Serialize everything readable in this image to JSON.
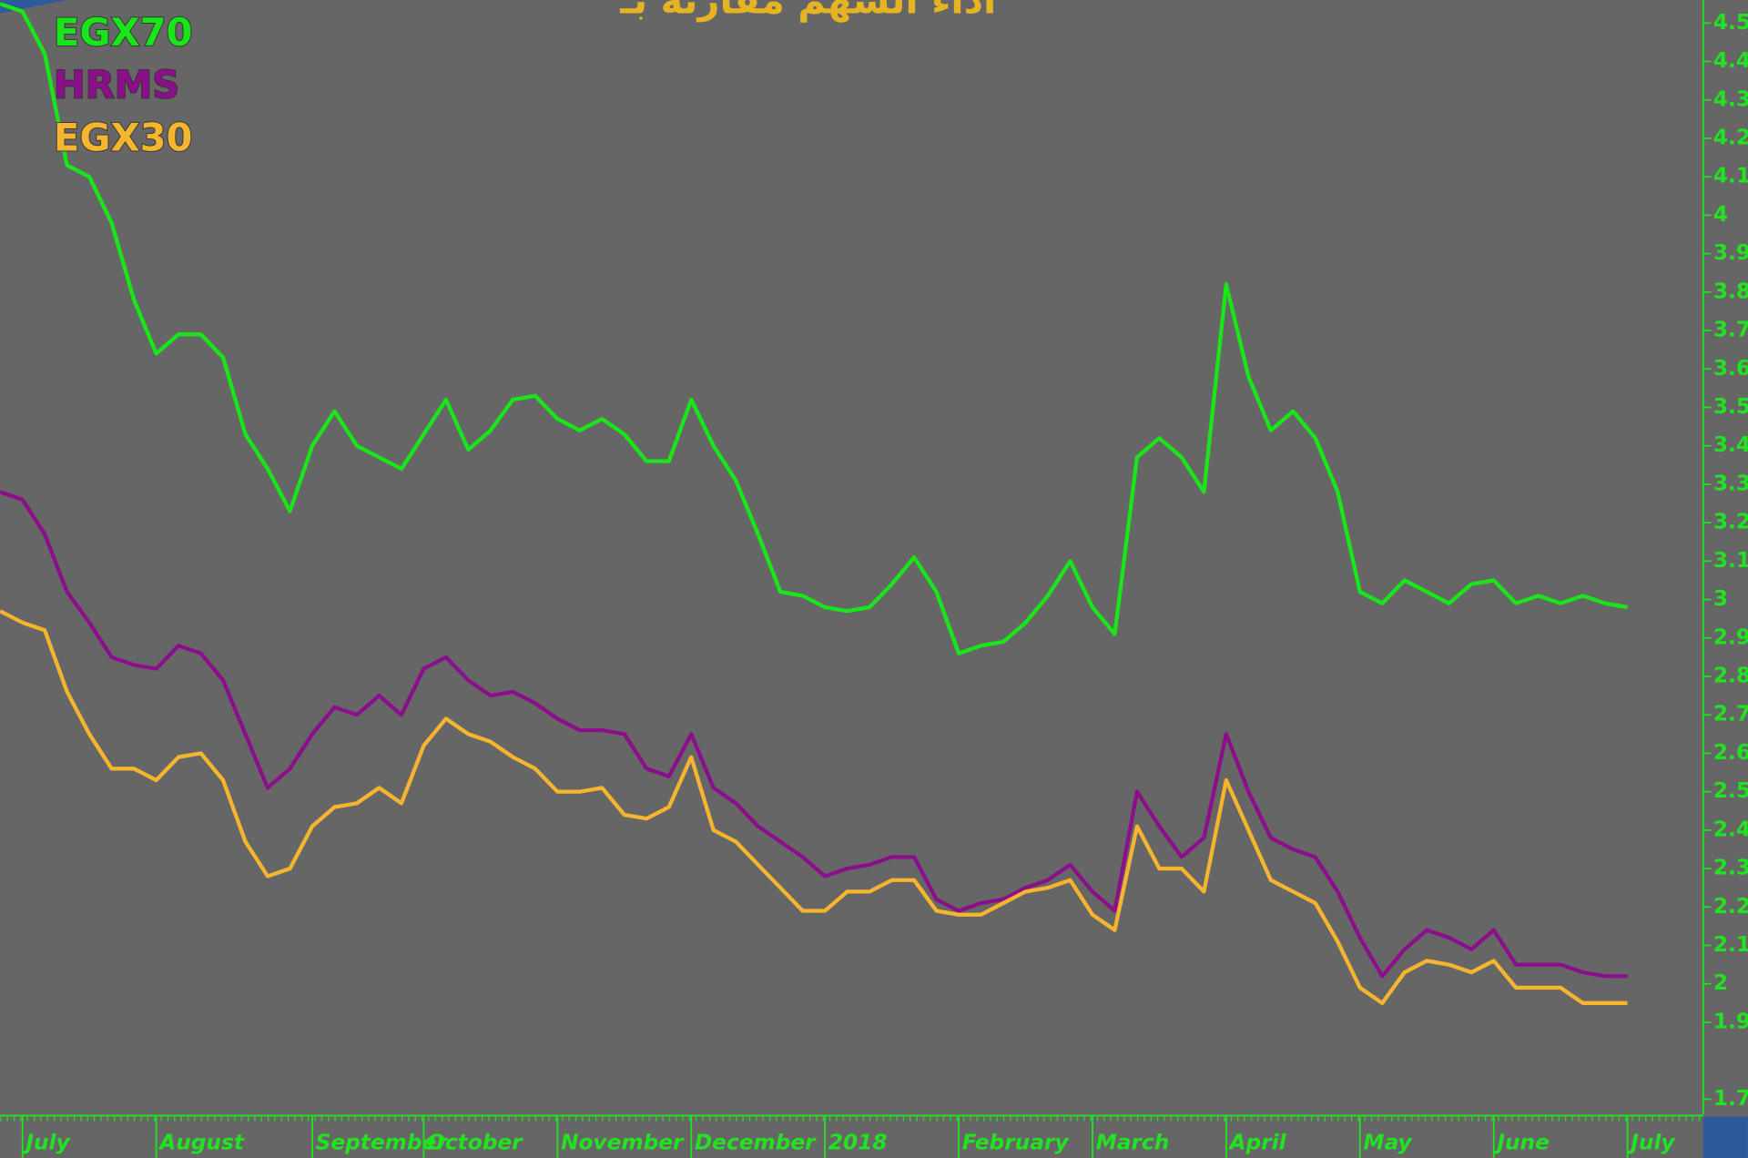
{
  "chart_data": {
    "type": "line",
    "title": "اداء السهم مقارنة بـ",
    "categories": [
      null,
      "July",
      null,
      null,
      null,
      null,
      null,
      "August",
      null,
      null,
      null,
      null,
      null,
      null,
      "September",
      null,
      null,
      null,
      null,
      "October",
      null,
      null,
      null,
      null,
      null,
      "November",
      null,
      null,
      null,
      null,
      null,
      "December",
      null,
      null,
      null,
      null,
      null,
      "2018",
      null,
      null,
      null,
      null,
      null,
      "February",
      null,
      null,
      null,
      null,
      null,
      "March",
      null,
      null,
      null,
      null,
      null,
      "April",
      null,
      null,
      null,
      null,
      null,
      "May",
      null,
      null,
      null,
      null,
      null,
      "June",
      null,
      null,
      null,
      null,
      null,
      "July"
    ],
    "series": [
      {
        "name": "EGX70",
        "color": "#19e619",
        "values": [
          4.55,
          4.53,
          4.42,
          4.13,
          4.1,
          3.98,
          3.78,
          3.64,
          3.69,
          3.69,
          3.63,
          3.43,
          3.34,
          3.23,
          3.4,
          3.49,
          3.4,
          3.37,
          3.34,
          3.43,
          3.52,
          3.39,
          3.44,
          3.52,
          3.53,
          3.47,
          3.44,
          3.47,
          3.43,
          3.36,
          3.36,
          3.52,
          3.4,
          3.31,
          3.17,
          3.02,
          3.01,
          2.98,
          2.97,
          2.98,
          3.04,
          3.11,
          3.02,
          2.86,
          2.88,
          2.89,
          2.94,
          3.01,
          3.1,
          2.98,
          2.91,
          3.37,
          3.42,
          3.37,
          3.28,
          3.82,
          3.58,
          3.44,
          3.49,
          3.42,
          3.28,
          3.02,
          2.99,
          3.05,
          3.02,
          2.99,
          3.04,
          3.05,
          2.99,
          3.01,
          2.99,
          3.01,
          2.99,
          2.98
        ]
      },
      {
        "name": "HRMS",
        "color": "#8b0f8b",
        "values": [
          3.28,
          3.26,
          3.17,
          3.02,
          2.94,
          2.85,
          2.83,
          2.82,
          2.88,
          2.86,
          2.79,
          2.65,
          2.51,
          2.56,
          2.65,
          2.72,
          2.7,
          2.75,
          2.7,
          2.82,
          2.85,
          2.79,
          2.75,
          2.76,
          2.73,
          2.69,
          2.66,
          2.66,
          2.65,
          2.56,
          2.54,
          2.65,
          2.51,
          2.47,
          2.41,
          2.37,
          2.33,
          2.28,
          2.3,
          2.31,
          2.33,
          2.33,
          2.22,
          2.19,
          2.21,
          2.22,
          2.25,
          2.27,
          2.31,
          2.24,
          2.19,
          2.5,
          2.41,
          2.33,
          2.38,
          2.65,
          2.5,
          2.38,
          2.35,
          2.33,
          2.24,
          2.12,
          2.02,
          2.09,
          2.14,
          2.12,
          2.09,
          2.14,
          2.05,
          2.05,
          2.05,
          2.03,
          2.02,
          2.02
        ]
      },
      {
        "name": "EGX30",
        "color": "#f5b52e",
        "values": [
          2.97,
          2.94,
          2.92,
          2.76,
          2.65,
          2.56,
          2.56,
          2.53,
          2.59,
          2.6,
          2.53,
          2.37,
          2.28,
          2.3,
          2.41,
          2.46,
          2.47,
          2.51,
          2.47,
          2.62,
          2.69,
          2.65,
          2.63,
          2.59,
          2.56,
          2.5,
          2.5,
          2.51,
          2.44,
          2.43,
          2.46,
          2.59,
          2.4,
          2.37,
          2.31,
          2.25,
          2.19,
          2.19,
          2.24,
          2.24,
          2.27,
          2.27,
          2.19,
          2.18,
          2.18,
          2.21,
          2.24,
          2.25,
          2.27,
          2.18,
          2.14,
          2.41,
          2.3,
          2.3,
          2.24,
          2.53,
          2.4,
          2.27,
          2.24,
          2.21,
          2.11,
          1.99,
          1.95,
          2.03,
          2.06,
          2.05,
          2.03,
          2.06,
          1.99,
          1.99,
          1.99,
          1.95,
          1.95,
          1.95
        ]
      }
    ],
    "ylim": [
      1.66,
      4.56
    ],
    "yticks": [
      4.5,
      4.4,
      4.3,
      4.2,
      4.1,
      4.0,
      3.9,
      3.8,
      3.7,
      3.6,
      3.5,
      3.4,
      3.3,
      3.2,
      3.1,
      3.0,
      2.9,
      2.8,
      2.7,
      2.6,
      2.5,
      2.4,
      2.3,
      2.2,
      2.1,
      2.0,
      1.9,
      1.7
    ],
    "grid": false
  }
}
